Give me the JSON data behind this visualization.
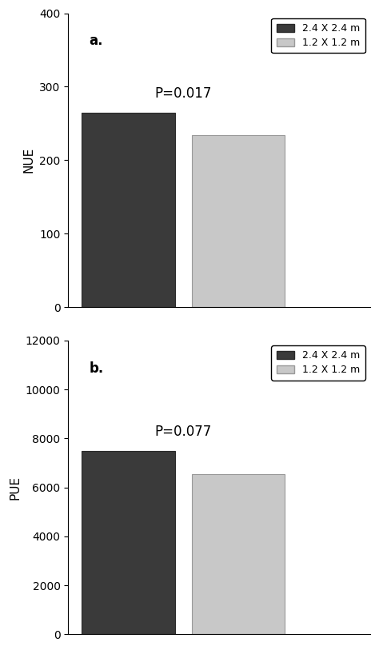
{
  "panel_a": {
    "label": "a.",
    "ylabel": "NUE",
    "values": [
      265,
      234
    ],
    "bar_colors": [
      "#3a3a3a",
      "#c8c8c8"
    ],
    "bar_edgecolors": [
      "#2a2a2a",
      "#999999"
    ],
    "ylim": [
      0,
      400
    ],
    "yticks": [
      0,
      100,
      200,
      300,
      400
    ],
    "pvalue_text": "P=0.017",
    "legend_labels": [
      "2.4 X 2.4 m",
      "1.2 X 1.2 m"
    ]
  },
  "panel_b": {
    "label": "b.",
    "ylabel": "PUE",
    "values": [
      7500,
      6550
    ],
    "bar_colors": [
      "#3a3a3a",
      "#c8c8c8"
    ],
    "bar_edgecolors": [
      "#2a2a2a",
      "#999999"
    ],
    "ylim": [
      0,
      12000
    ],
    "yticks": [
      0,
      2000,
      4000,
      6000,
      8000,
      10000,
      12000
    ],
    "pvalue_text": "P=0.077",
    "legend_labels": [
      "2.4 X 2.4 m",
      "1.2 X 1.2 m"
    ]
  },
  "figure_bgcolor": "#ffffff",
  "axes_bgcolor": "#ffffff",
  "fontsize_tick": 10,
  "fontsize_label": 11,
  "fontsize_pvalue": 12,
  "fontsize_panel_label": 12,
  "fontsize_legend": 9
}
